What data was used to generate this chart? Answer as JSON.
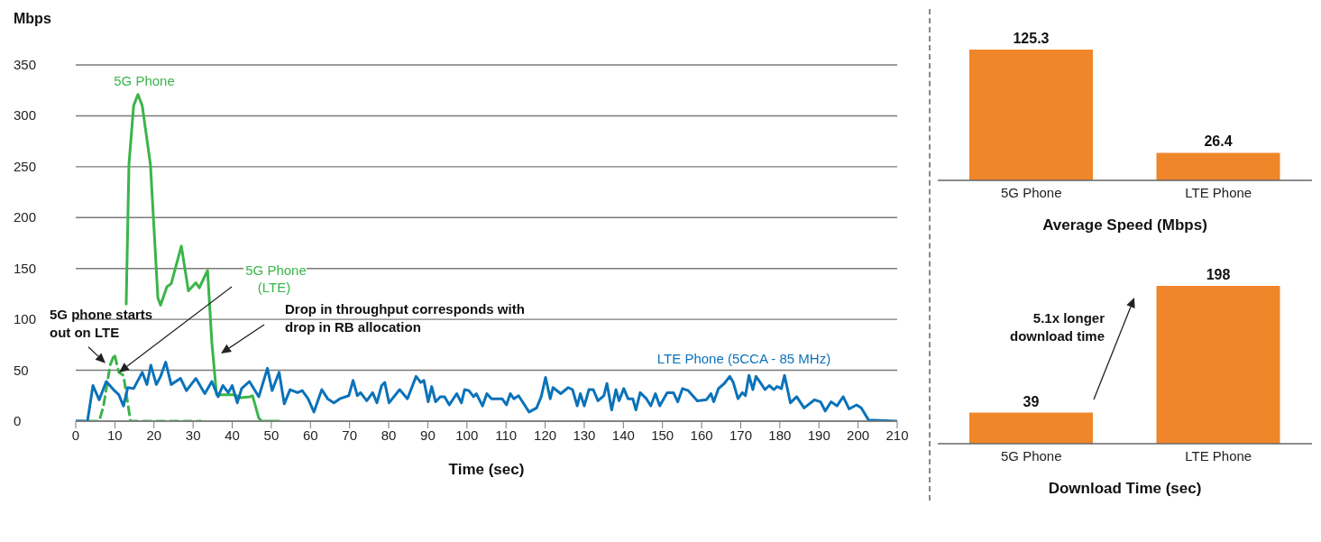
{
  "chart_data": [
    {
      "type": "line",
      "xlabel": "Time (sec)",
      "ylabel": "Mbps",
      "xlim": [
        0,
        210
      ],
      "xticks": [
        0,
        10,
        20,
        30,
        40,
        50,
        60,
        70,
        80,
        90,
        100,
        110,
        120,
        130,
        140,
        150,
        160,
        170,
        180,
        190,
        200,
        210
      ],
      "ylim": [
        0,
        350
      ],
      "yticks": [
        0,
        50,
        100,
        150,
        200,
        250,
        300,
        350
      ],
      "grid": "y",
      "line_style": "solid",
      "marker": "none",
      "series": [
        {
          "name": "5G Phone",
          "color": "#3ab54a",
          "x": [
            12.9,
            13.6,
            14.8,
            15.9,
            17,
            19.1,
            21,
            21.7,
            23.3,
            24.4,
            27,
            28.8,
            30.7,
            31.6,
            32.7,
            33.7,
            34.8,
            36,
            40.6,
            42.2,
            44.5,
            45.2,
            46.8,
            47.5,
            52
          ],
          "values": [
            115,
            252,
            310,
            321,
            310,
            252,
            121,
            114,
            132,
            135,
            172,
            128,
            136,
            131,
            140,
            148,
            77,
            26,
            26,
            23,
            24,
            25,
            3,
            0,
            0
          ]
        },
        {
          "name": "5G Phone (LTE)",
          "color": "#3ab54a",
          "line_style": "dashed",
          "x": [
            0,
            6,
            7.1,
            8.8,
            9.9,
            11,
            12.2,
            14,
            32
          ],
          "values": [
            0,
            0,
            15,
            55,
            66,
            48,
            45,
            0,
            0
          ]
        },
        {
          "name": "LTE Phone (5CCA - 85 MHz)",
          "color": "#0b72b9",
          "x": [
            0,
            3,
            4.4,
            6,
            7.8,
            9.9,
            11,
            12.2,
            13.3,
            14.8,
            17,
            18.2,
            19.2,
            20.6,
            21.7,
            23,
            24.4,
            26.8,
            28.3,
            30.7,
            33,
            34.8,
            36.4,
            37.6,
            39,
            40,
            41.3,
            42.4,
            44.4,
            46.8,
            49,
            50.2,
            52,
            53.3,
            54.8,
            56.7,
            57.9,
            59.4,
            60.9,
            62.9,
            64.4,
            66,
            67.5,
            69.8,
            70.9,
            72,
            72.8,
            74.4,
            75.9,
            77,
            78.2,
            79,
            80.1,
            82.8,
            84.8,
            87,
            88.2,
            89,
            90.1,
            91,
            92,
            93.2,
            94.3,
            95.5,
            97.4,
            98.6,
            99.4,
            100.5,
            101.7,
            102.4,
            104,
            105.1,
            106.3,
            109,
            110.1,
            111.1,
            112,
            113.2,
            115.9,
            117.8,
            119,
            120.1,
            121.3,
            122,
            124,
            125.9,
            127,
            128.2,
            129,
            130,
            131.2,
            132.3,
            133.5,
            135,
            135.8,
            137,
            138.1,
            138.9,
            140.1,
            141.2,
            142.4,
            143.2,
            144.3,
            145.9,
            147,
            148.2,
            149.3,
            151.2,
            152.8,
            153.9,
            155.1,
            156.6,
            158.9,
            161.2,
            162.4,
            163.1,
            164.3,
            165.8,
            167.2,
            168.1,
            169.3,
            170.4,
            171.2,
            172.1,
            173.1,
            173.9,
            175,
            176.2,
            177.3,
            178.5,
            179.3,
            180.4,
            181.2,
            182.7,
            184.3,
            186.2,
            188.9,
            190.4,
            191.6,
            193.1,
            194.6,
            196.2,
            197.7,
            199.6,
            200.8,
            202.7,
            210
          ],
          "values": [
            0,
            0,
            35,
            21,
            39,
            30,
            26,
            15,
            33,
            32,
            48,
            36,
            55,
            36,
            44,
            58,
            36,
            42,
            30,
            42,
            27,
            39,
            24,
            35,
            28,
            35,
            18,
            32,
            39,
            24,
            52,
            30,
            48,
            17,
            31,
            28,
            30,
            22,
            9,
            31,
            22,
            18,
            22,
            25,
            40,
            25,
            28,
            20,
            28,
            18,
            35,
            38,
            18,
            31,
            22,
            44,
            38,
            40,
            19,
            34,
            19,
            24,
            24,
            16,
            27,
            18,
            31,
            30,
            24,
            27,
            15,
            27,
            22,
            22,
            16,
            27,
            22,
            25,
            9,
            13,
            24,
            43,
            22,
            33,
            27,
            33,
            31,
            15,
            27,
            15,
            31,
            31,
            20,
            25,
            37,
            11,
            31,
            20,
            32,
            22,
            22,
            11,
            28,
            22,
            15,
            27,
            15,
            28,
            28,
            19,
            32,
            30,
            20,
            21,
            27,
            19,
            32,
            37,
            44,
            38,
            22,
            28,
            25,
            45,
            31,
            44,
            38,
            31,
            35,
            31,
            34,
            32,
            45,
            18,
            24,
            13,
            21,
            19,
            10,
            19,
            15,
            24,
            12,
            16,
            13,
            1,
            0
          ]
        }
      ],
      "annotations": [
        {
          "text": "5G phone starts out on LTE",
          "x": 7.6,
          "y": 57
        },
        "Drop in throughput corresponds with drop in RB allocation"
      ]
    },
    {
      "type": "bar",
      "categories": [
        "5G Phone",
        "LTE Phone"
      ],
      "values": [
        125.3,
        26.4
      ],
      "color": "#f0862a",
      "data_labels": true,
      "xlabel": "Average Speed (Mbps)"
    },
    {
      "type": "bar",
      "categories": [
        "5G Phone",
        "LTE Phone"
      ],
      "values": [
        39,
        198
      ],
      "color": "#f0862a",
      "data_labels": true,
      "xlabel": "Download Time (sec)",
      "annotations": [
        "5.1x longer download time"
      ]
    }
  ]
}
